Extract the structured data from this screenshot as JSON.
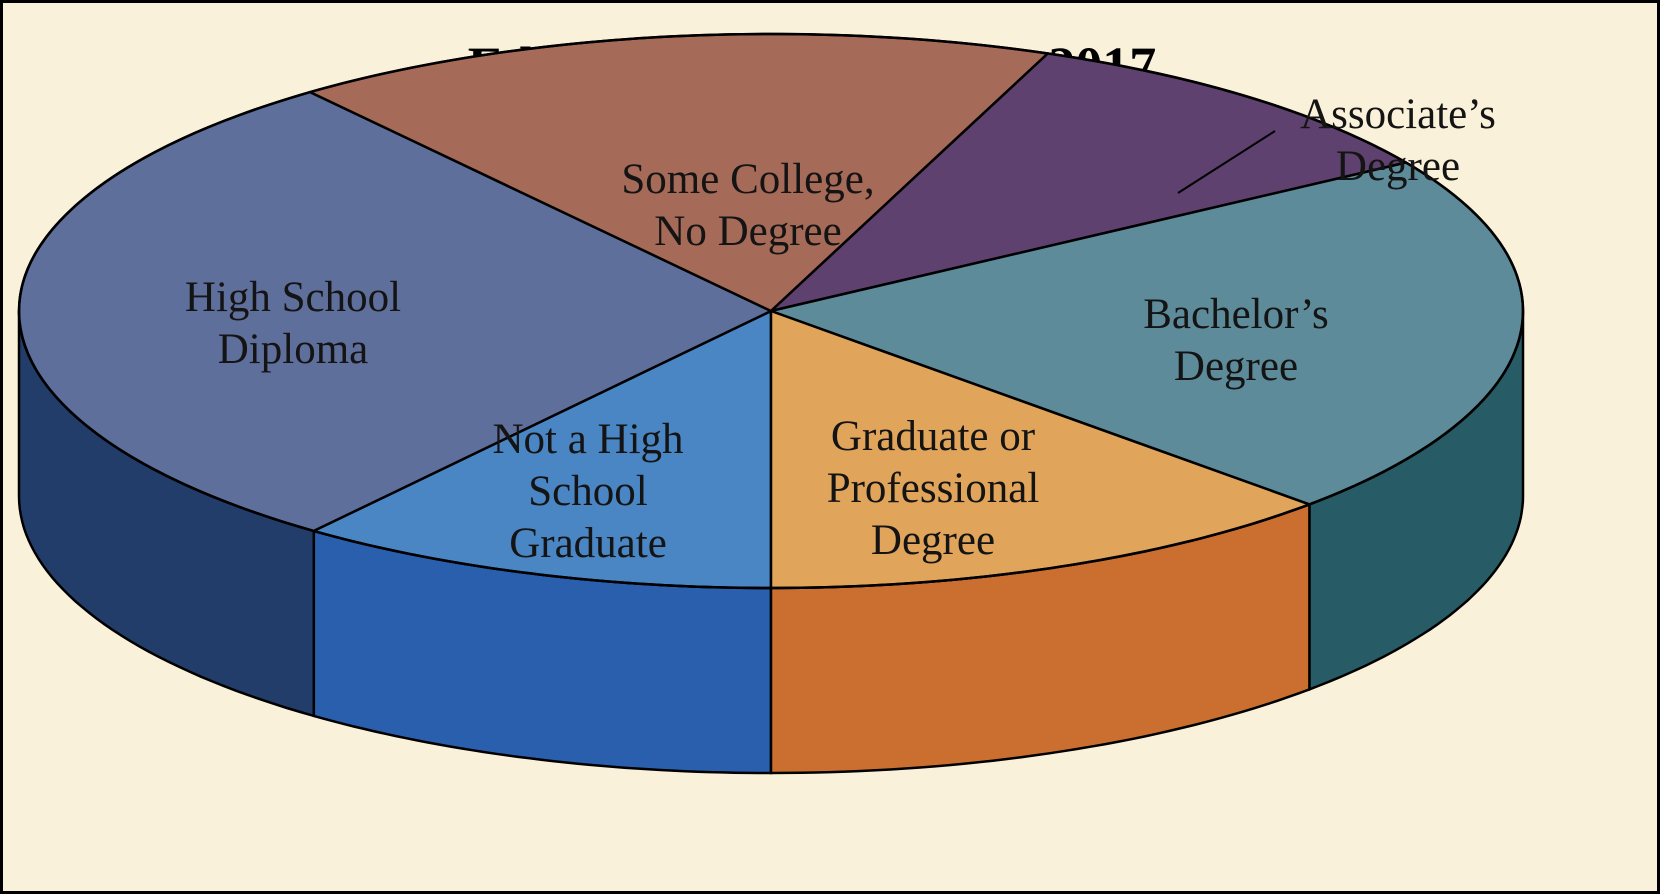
{
  "chart_data": {
    "type": "pie",
    "title": "Educational Attainment, 2017",
    "slices": [
      {
        "label": "Not a High School Graduate",
        "value": 10.4,
        "color": "#4a86c4",
        "side_color": "#2a5fae"
      },
      {
        "label": "High School Diploma",
        "value": 29.1,
        "color": "#5f6f9b",
        "side_color": "#233d6b"
      },
      {
        "label": "Some College, No Degree",
        "value": 16.5,
        "color": "#a56a58",
        "side_color": "#7e4a3e"
      },
      {
        "label": "Associate's Degree",
        "value": 10.0,
        "color": "#5e416e",
        "side_color": "#3e2a4b"
      },
      {
        "label": "Bachelor's Degree",
        "value": 21.3,
        "color": "#5e8b99",
        "side_color": "#275c67"
      },
      {
        "label": "Graduate or Professional Degree",
        "value": 12.7,
        "color": "#e0a45a",
        "side_color": "#cb6f31"
      }
    ],
    "legend": "none",
    "labels_on_slices": true,
    "three_d": true
  }
}
